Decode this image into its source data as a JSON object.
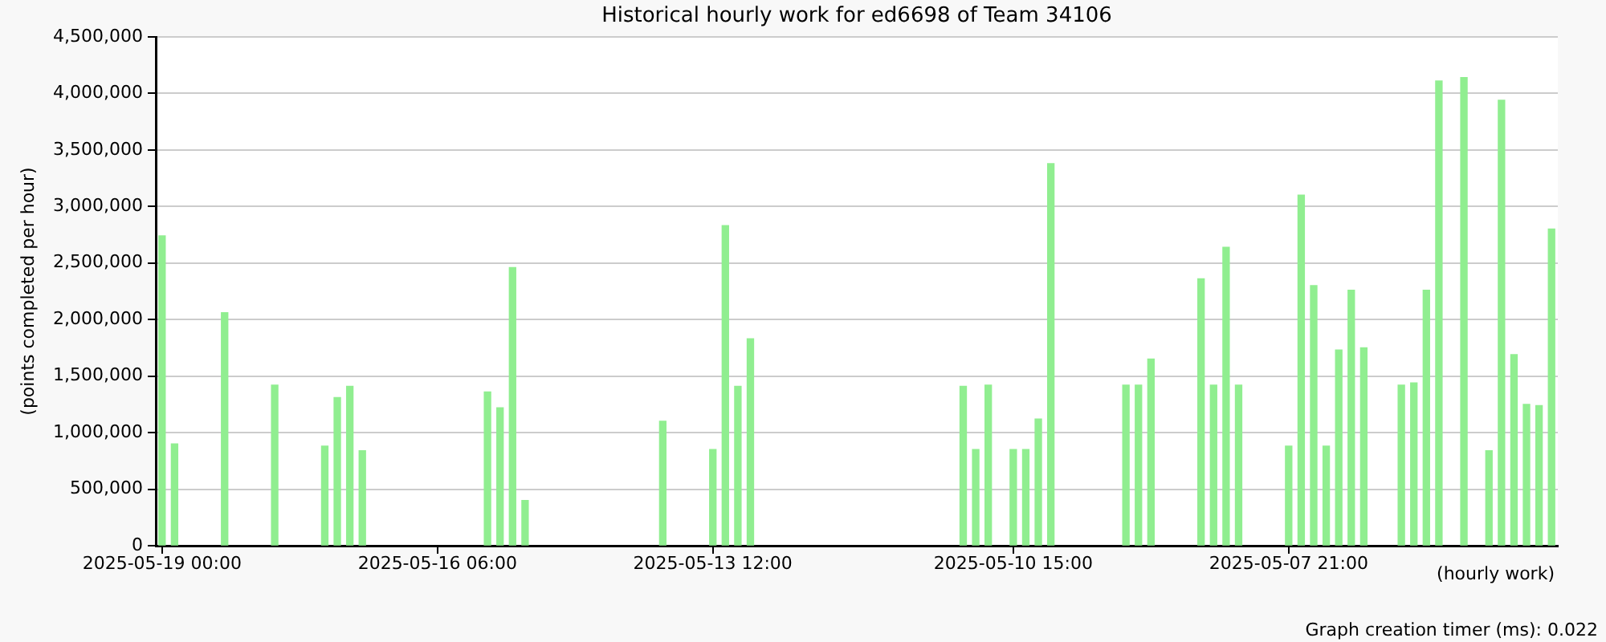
{
  "chart_data": {
    "type": "bar",
    "title": "Historical hourly work for ed6698 of Team 34106",
    "xlabel": "(hourly work)",
    "ylabel": "(points completed per hour)",
    "annotations": [
      "Graph creation timer (ms): 0.022"
    ],
    "categories": [
      "2025-05-19 00:00",
      null,
      null,
      null,
      null,
      null,
      null,
      null,
      null,
      null,
      null,
      null,
      null,
      null,
      null,
      null,
      null,
      null,
      null,
      null,
      null,
      null,
      "2025-05-16 06:00",
      null,
      null,
      null,
      null,
      null,
      null,
      null,
      null,
      null,
      null,
      null,
      null,
      null,
      null,
      null,
      null,
      null,
      null,
      null,
      null,
      null,
      "2025-05-13 12:00",
      null,
      null,
      null,
      null,
      null,
      null,
      null,
      null,
      null,
      null,
      null,
      null,
      null,
      null,
      null,
      null,
      null,
      null,
      null,
      null,
      null,
      null,
      null,
      "2025-05-10 15:00",
      null,
      null,
      null,
      null,
      null,
      null,
      null,
      null,
      null,
      null,
      null,
      null,
      null,
      null,
      null,
      null,
      null,
      null,
      null,
      null,
      null,
      "2025-05-07 21:00",
      null,
      null,
      null,
      null,
      null,
      null,
      null,
      null,
      null,
      null,
      null,
      null,
      null,
      null,
      null,
      null,
      null,
      null,
      null,
      null,
      null
    ],
    "values": [
      2740000,
      900000,
      null,
      null,
      null,
      2060000,
      null,
      null,
      null,
      1420000,
      null,
      null,
      null,
      880000,
      1310000,
      1410000,
      840000,
      null,
      null,
      null,
      null,
      null,
      null,
      null,
      null,
      null,
      1360000,
      1220000,
      2460000,
      400000,
      null,
      null,
      null,
      null,
      null,
      null,
      null,
      null,
      null,
      null,
      1100000,
      null,
      null,
      null,
      850000,
      2830000,
      1410000,
      1830000,
      null,
      null,
      null,
      null,
      null,
      null,
      null,
      null,
      null,
      null,
      null,
      null,
      null,
      null,
      null,
      null,
      1410000,
      850000,
      1420000,
      null,
      850000,
      850000,
      1120000,
      3380000,
      null,
      null,
      null,
      null,
      null,
      1420000,
      1420000,
      1650000,
      null,
      null,
      null,
      2360000,
      1420000,
      2640000,
      1420000,
      null,
      null,
      null,
      880000,
      3100000,
      2300000,
      880000,
      1730000,
      2260000,
      1750000,
      null,
      null,
      1420000,
      1440000,
      2260000,
      4110000,
      null,
      4140000,
      null,
      840000,
      3940000,
      1690000,
      1250000,
      1240000,
      2800000
    ],
    "color": "#90ee90",
    "ylim": [
      0,
      4500000
    ],
    "yticks": [
      0,
      {
        "value": 500000,
        "label": "500,000"
      },
      {
        "value": 1000000,
        "label": "1,000,000"
      },
      {
        "value": 1500000,
        "label": "1,500,000"
      },
      {
        "value": 2000000,
        "label": "2,000,000"
      },
      {
        "value": 2500000,
        "label": "2,500,000"
      },
      {
        "value": 3000000,
        "label": "3,000,000"
      },
      {
        "value": 3500000,
        "label": "3,500,000"
      },
      {
        "value": 4000000,
        "label": "4,000,000"
      },
      {
        "value": 4500000,
        "label": "4,500,000"
      }
    ],
    "grid": "y"
  }
}
